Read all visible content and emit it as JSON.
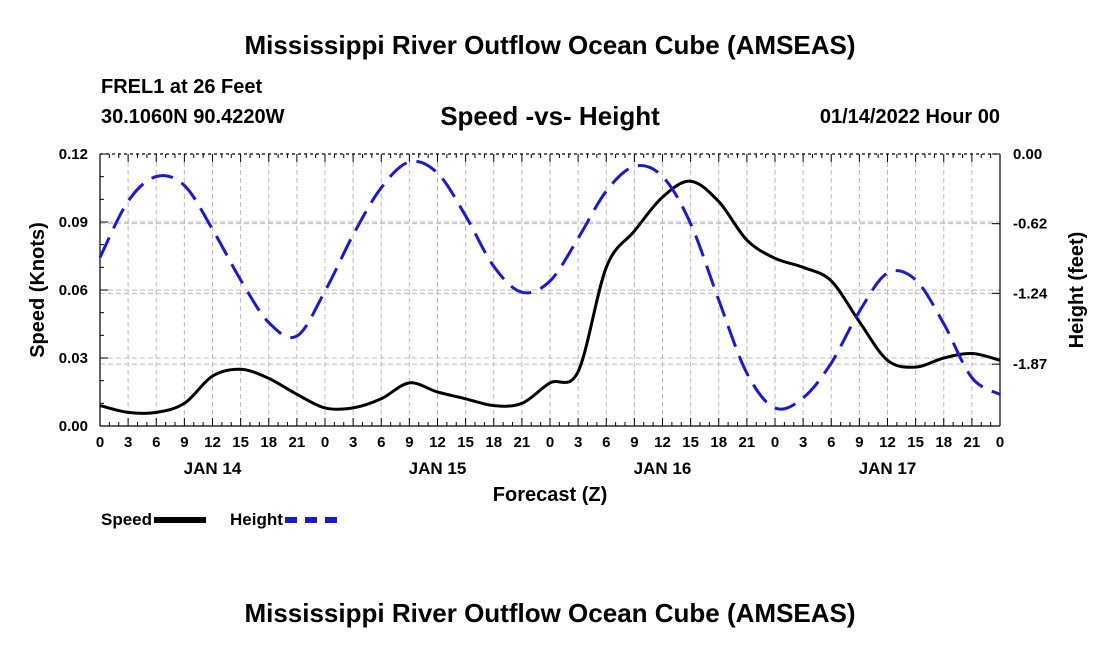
{
  "page": {
    "title": "Mississippi River Outflow Ocean Cube (AMSEAS)",
    "station": "FREL1 at 26 Feet",
    "coords": "30.1060N  90.4220W",
    "chart_subtitle": "Speed -vs- Height",
    "datetime": "01/14/2022 Hour 00",
    "footer_title": "Mississippi River Outflow Ocean Cube (AMSEAS)"
  },
  "legend": {
    "speed_label": "Speed",
    "height_label": "Height"
  },
  "colors": {
    "speed": "#000000",
    "height": "#1a1acc",
    "grid": "#bbbbbb"
  },
  "chart_data": {
    "type": "line",
    "title": "Speed -vs- Height",
    "xlabel": "Forecast (Z)",
    "ylabel": "Speed (Knots)",
    "y2label": "Height (feet)",
    "xlim": [
      0,
      96
    ],
    "ylim": [
      0,
      0.12
    ],
    "y2lim": [
      -2.42,
      0.0
    ],
    "x_tick_step": 3,
    "x_tick_labels": [
      "0",
      "3",
      "6",
      "9",
      "12",
      "15",
      "18",
      "21",
      "0",
      "3",
      "6",
      "9",
      "12",
      "15",
      "18",
      "21",
      "0",
      "3",
      "6",
      "9",
      "12",
      "15",
      "18",
      "21",
      "0",
      "3",
      "6",
      "9",
      "12",
      "15",
      "18",
      "21",
      "0"
    ],
    "y_ticks": [
      "0.00",
      "0.03",
      "0.06",
      "0.09",
      "0.12"
    ],
    "y2_ticks": [
      {
        "value": 0.0,
        "label": "0.00"
      },
      {
        "value": -0.62,
        "label": "-0.62"
      },
      {
        "value": -1.24,
        "label": "-1.24"
      },
      {
        "value": -1.87,
        "label": "-1.87"
      }
    ],
    "day_labels": [
      {
        "x": 12,
        "label": "JAN 14"
      },
      {
        "x": 36,
        "label": "JAN 15"
      },
      {
        "x": 60,
        "label": "JAN 16"
      },
      {
        "x": 84,
        "label": "JAN 17"
      }
    ],
    "grid": true,
    "series": [
      {
        "name": "Speed",
        "axis": "left",
        "style": "solid",
        "x": [
          0,
          3,
          6,
          9,
          12,
          15,
          18,
          21,
          24,
          27,
          30,
          33,
          36,
          39,
          42,
          45,
          48,
          51,
          54,
          57,
          60,
          63,
          66,
          69,
          72,
          75,
          78,
          81,
          84,
          87,
          90,
          93,
          96
        ],
        "values": [
          0.009,
          0.006,
          0.006,
          0.01,
          0.022,
          0.025,
          0.021,
          0.014,
          0.008,
          0.008,
          0.012,
          0.019,
          0.015,
          0.012,
          0.009,
          0.01,
          0.019,
          0.024,
          0.07,
          0.086,
          0.101,
          0.108,
          0.099,
          0.082,
          0.074,
          0.07,
          0.064,
          0.046,
          0.029,
          0.026,
          0.03,
          0.032,
          0.029
        ]
      },
      {
        "name": "Height",
        "axis": "right",
        "style": "dashed",
        "x": [
          0,
          3,
          6,
          9,
          12,
          15,
          18,
          21,
          24,
          27,
          30,
          33,
          36,
          39,
          42,
          45,
          48,
          51,
          54,
          57,
          60,
          63,
          66,
          69,
          72,
          75,
          78,
          81,
          84,
          87,
          90,
          93,
          96
        ],
        "values": [
          -0.92,
          -0.42,
          -0.2,
          -0.28,
          -0.67,
          -1.12,
          -1.5,
          -1.62,
          -1.22,
          -0.72,
          -0.3,
          -0.07,
          -0.17,
          -0.55,
          -1.0,
          -1.23,
          -1.13,
          -0.75,
          -0.33,
          -0.11,
          -0.2,
          -0.62,
          -1.3,
          -1.95,
          -2.26,
          -2.17,
          -1.86,
          -1.4,
          -1.06,
          -1.12,
          -1.51,
          -1.99,
          -2.14
        ]
      }
    ]
  }
}
